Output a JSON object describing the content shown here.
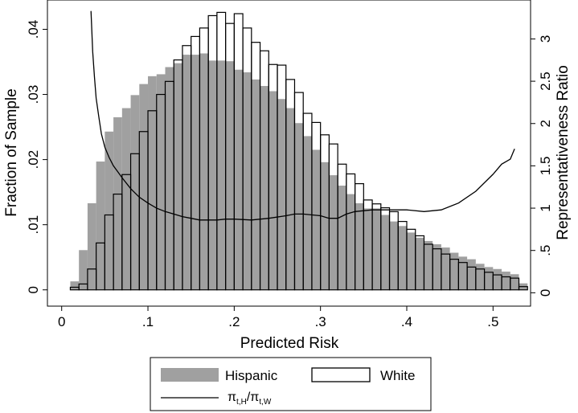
{
  "chart_data": {
    "type": "bar",
    "title": "",
    "xlabel": "Predicted Risk",
    "ylabel": "Fraction of Sample",
    "y2label": "Representativeness Ratio",
    "xlim": [
      -0.0165,
      0.5435
    ],
    "ylim": [
      -0.0025,
      0.0445
    ],
    "y2lim": [
      -0.158,
      3.46
    ],
    "xticks": [
      0,
      0.1,
      0.2,
      0.3,
      0.4,
      0.5
    ],
    "xtick_labels": [
      "0",
      ".1",
      ".2",
      ".3",
      ".4",
      ".5"
    ],
    "yticks": [
      0,
      0.01,
      0.02,
      0.03,
      0.04
    ],
    "ytick_labels": [
      "0",
      ".01",
      ".02",
      ".03",
      ".04"
    ],
    "y2ticks": [
      0,
      0.5,
      1,
      1.5,
      2,
      2.5,
      3
    ],
    "y2tick_labels": [
      "0",
      ".5",
      "1",
      "1.5",
      "2",
      "2.5",
      "3"
    ],
    "bin_width": 0.01,
    "bin_starts": [
      0.01,
      0.02,
      0.03,
      0.04,
      0.05,
      0.06,
      0.07,
      0.08,
      0.09,
      0.1,
      0.11,
      0.12,
      0.13,
      0.14,
      0.15,
      0.16,
      0.17,
      0.18,
      0.19,
      0.2,
      0.21,
      0.22,
      0.23,
      0.24,
      0.25,
      0.26,
      0.27,
      0.28,
      0.29,
      0.3,
      0.31,
      0.32,
      0.33,
      0.34,
      0.35,
      0.36,
      0.37,
      0.38,
      0.39,
      0.4,
      0.41,
      0.42,
      0.43,
      0.44,
      0.45,
      0.46,
      0.47,
      0.48,
      0.49,
      0.5,
      0.51,
      0.52,
      0.53
    ],
    "series": [
      {
        "name": "Hispanic",
        "style": "filled",
        "color": "#a0a0a0",
        "values": [
          0.0013,
          0.0061,
          0.0133,
          0.0197,
          0.0243,
          0.0265,
          0.0279,
          0.0299,
          0.0316,
          0.0328,
          0.0331,
          0.0342,
          0.0348,
          0.0361,
          0.0361,
          0.0363,
          0.0352,
          0.0352,
          0.0351,
          0.0338,
          0.0334,
          0.0323,
          0.0313,
          0.0305,
          0.0293,
          0.0279,
          0.0256,
          0.0236,
          0.0215,
          0.0196,
          0.0176,
          0.016,
          0.0147,
          0.0133,
          0.0125,
          0.0125,
          0.0115,
          0.0105,
          0.0098,
          0.0088,
          0.008,
          0.0075,
          0.007,
          0.0065,
          0.0057,
          0.0051,
          0.0047,
          0.004,
          0.0035,
          0.0032,
          0.0028,
          0.0024,
          0.001
        ]
      },
      {
        "name": "White",
        "style": "outline",
        "color": "#000000",
        "values": [
          0.0004,
          0.0009,
          0.0032,
          0.0072,
          0.0115,
          0.0147,
          0.0177,
          0.0209,
          0.0243,
          0.0275,
          0.03,
          0.032,
          0.0353,
          0.0375,
          0.0389,
          0.0402,
          0.0421,
          0.0426,
          0.0409,
          0.0424,
          0.0402,
          0.038,
          0.0367,
          0.0346,
          0.0345,
          0.0323,
          0.0303,
          0.0271,
          0.0257,
          0.0238,
          0.0224,
          0.0193,
          0.0178,
          0.0163,
          0.0138,
          0.0132,
          0.0126,
          0.012,
          0.0105,
          0.0093,
          0.0083,
          0.007,
          0.0063,
          0.0055,
          0.0047,
          0.0042,
          0.0035,
          0.0032,
          0.0027,
          0.0023,
          0.002,
          0.0018,
          0.0005
        ]
      },
      {
        "name": "π_{t,H}/π_{t,W}",
        "type": "line",
        "axis": "right",
        "color": "#000000",
        "x": [
          0.034,
          0.036,
          0.038,
          0.04,
          0.043,
          0.046,
          0.05,
          0.055,
          0.06,
          0.065,
          0.07,
          0.08,
          0.09,
          0.1,
          0.11,
          0.12,
          0.13,
          0.14,
          0.15,
          0.16,
          0.17,
          0.18,
          0.19,
          0.2,
          0.22,
          0.24,
          0.26,
          0.27,
          0.28,
          0.3,
          0.31,
          0.32,
          0.33,
          0.34,
          0.36,
          0.38,
          0.4,
          0.42,
          0.44,
          0.46,
          0.48,
          0.5,
          0.51,
          0.52,
          0.525
        ],
        "y": [
          3.33,
          2.85,
          2.55,
          2.3,
          2.08,
          1.88,
          1.72,
          1.6,
          1.5,
          1.43,
          1.36,
          1.23,
          1.13,
          1.06,
          1.0,
          0.96,
          0.93,
          0.9,
          0.88,
          0.86,
          0.86,
          0.86,
          0.87,
          0.87,
          0.86,
          0.88,
          0.91,
          0.93,
          0.93,
          0.91,
          0.88,
          0.88,
          0.93,
          0.96,
          0.98,
          0.98,
          0.98,
          0.96,
          0.98,
          1.06,
          1.2,
          1.4,
          1.52,
          1.58,
          1.7
        ]
      }
    ],
    "legend": {
      "placement": "bottom",
      "entries": [
        {
          "label": "Hispanic",
          "style": "filled"
        },
        {
          "label": "White",
          "style": "outline"
        },
        {
          "label_main": "π",
          "label_sub": "t,H",
          "label_slash": "/",
          "label_main2": "π",
          "label_sub2": "t,W",
          "style": "line"
        }
      ]
    }
  }
}
